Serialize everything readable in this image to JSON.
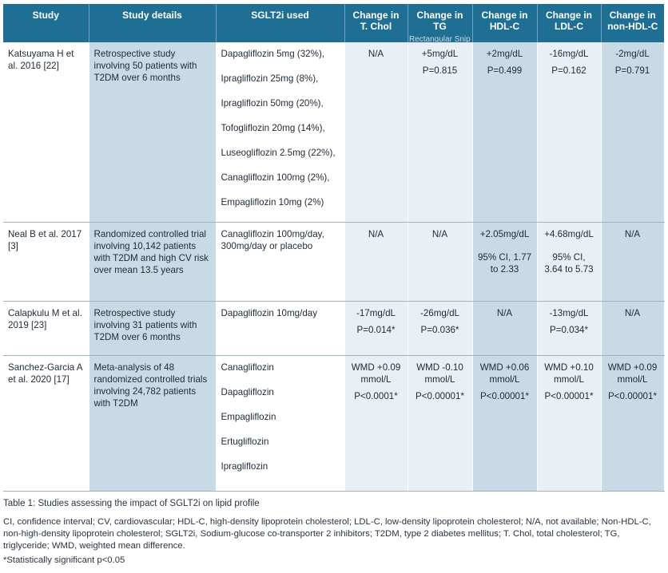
{
  "headers": [
    "Study",
    "Study details",
    "SGLT2i used",
    "Change in T. Chol",
    "Change in TG",
    "Change in HDL-C",
    "Change in LDL-C",
    "Change in non-HDL-C"
  ],
  "headers_split": [
    [
      "Study"
    ],
    [
      "Study details"
    ],
    [
      "SGLT2i used"
    ],
    [
      "Change in",
      "T. Chol"
    ],
    [
      "Change in",
      "TG"
    ],
    [
      "Change in",
      "HDL-C"
    ],
    [
      "Change in",
      "LDL-C"
    ],
    [
      "Change in",
      "non-HDL-C"
    ]
  ],
  "rows": [
    {
      "study": "Katsuyama H et al. 2016 [22]",
      "details": "Retrospective study involving 50 patients with T2DM over 6 months",
      "sglt2i": [
        "Dapagliflozin 5mg (32%),",
        "Ipragliflozin 25mg (8%),",
        "Ipragliflozin 50mg (20%),",
        "Tofogliflozin 20mg (14%),",
        "Luseogliflozin 2.5mg (22%),",
        "Canagliflozin 100mg (2%),",
        "Empagliflozin 10mg (2%)"
      ],
      "tchol": [
        "N/A"
      ],
      "tg": [
        "+5mg/dL",
        "P=0.815"
      ],
      "hdl": [
        "+2mg/dL",
        "P=0.499"
      ],
      "ldl": [
        "-16mg/dL",
        "P=0.162"
      ],
      "nonhdl": [
        "-2mg/dL",
        "P=0.791"
      ]
    },
    {
      "study": "Neal B et al. 2017 [3]",
      "details": "Randomized controlled trial involving 10,142 patients with T2DM and high CV risk over mean 13.5 years",
      "sglt2i": [
        "Canagliflozin 100mg/day, 300mg/day or placebo"
      ],
      "tchol": [
        "N/A"
      ],
      "tg": [
        "N/A"
      ],
      "hdl": [
        "+2.05mg/dL",
        "95% CI, 1.77 to 2.33"
      ],
      "ldl": [
        "+4.68mg/dL",
        "95% CI, 3.64 to 5.73"
      ],
      "nonhdl": [
        "N/A"
      ]
    },
    {
      "study": "Calapkulu M et al. 2019 [23]",
      "details": "Retrospective study involving 31 patients with T2DM over 6 months",
      "sglt2i": [
        "Dapagliflozin 10mg/day"
      ],
      "tchol": [
        "-17mg/dL",
        "P=0.014*"
      ],
      "tg": [
        "-26mg/dL",
        "P=0.036*"
      ],
      "hdl": [
        "N/A"
      ],
      "ldl": [
        "-13mg/dL",
        "P=0.034*"
      ],
      "nonhdl": [
        "N/A"
      ]
    },
    {
      "study": "Sanchez-Garcia A et al. 2020 [17]",
      "details": "Meta-analysis of 48 randomized controlled trials involving 24,782 patients with T2DM",
      "sglt2i": [
        "Canagliflozin",
        "Dapagliflozin",
        "Empagliflozin",
        "Ertugliflozin",
        "Ipragliflozin"
      ],
      "tchol": [
        "WMD +0.09 mmol/L",
        "P<0.0001*"
      ],
      "tg": [
        "WMD -0.10 mmol/L",
        "P<0.00001*"
      ],
      "hdl": [
        "WMD +0.06 mmol/L",
        "P<0.00001*"
      ],
      "ldl": [
        "WMD +0.10 mmol/L",
        "P<0.00001*"
      ],
      "nonhdl": [
        "WMD +0.09 mmol/L",
        "P<0.00001*"
      ]
    }
  ],
  "caption": "Table 1: Studies assessing the impact of SGLT2i on lipid profile",
  "abbreviations": "CI, confidence interval; CV, cardiovascular; HDL-C, high-density lipoprotein cholesterol; LDL-C, low-density lipoprotein cholesterol; N/A, not available; Non-HDL-C, non-high-density lipoprotein cholesterol; SGLT2i, Sodium-glucose co-transporter 2 inhibitors; T2DM, type 2 diabetes mellitus; T. Chol, total cholesterol; TG, triglyceride; WMD, weighted mean difference.",
  "significance_note": "*Statistically significant p<0.05",
  "faint_overlay_text": "Rectangular Snip",
  "colors": {
    "header_bg": "#1f6f94",
    "col_shade_dark": "#c9dae7",
    "col_shade_light": "#e8eff5"
  }
}
